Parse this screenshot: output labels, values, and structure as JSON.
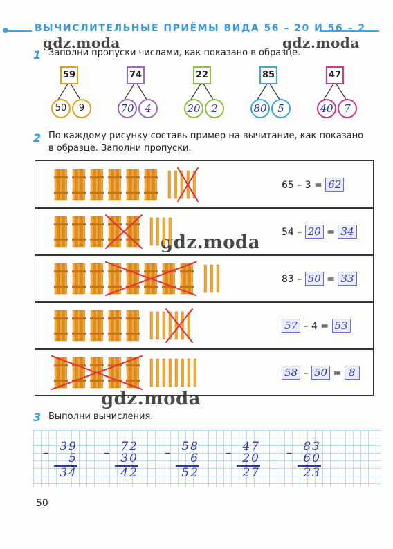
{
  "title": "ВЫЧИСЛИТЕЛЬНЫЕ ПРИЁМЫ ВИДА 56 – 20 И 56 – 2",
  "watermark": "gdz.moda",
  "task1": {
    "number": "1",
    "text": "Заполни пропуски числами, как показано в образце.",
    "items": [
      {
        "top": "59",
        "left": "50",
        "right": "9",
        "color": "#e0a019",
        "handwritten": false
      },
      {
        "top": "74",
        "left": "70",
        "right": "4",
        "color": "#9b6bc4",
        "handwritten": true
      },
      {
        "top": "22",
        "left": "20",
        "right": "2",
        "color": "#8cbf3a",
        "handwritten": true
      },
      {
        "top": "85",
        "left": "80",
        "right": "5",
        "color": "#3aa6d8",
        "handwritten": true
      },
      {
        "top": "47",
        "left": "40",
        "right": "7",
        "color": "#d63384",
        "handwritten": true
      }
    ]
  },
  "task2": {
    "number": "2",
    "text_line1": "По каждому рисунку составь пример на вычитание, как показано",
    "text_line2": "в образце. Заполни пропуски.",
    "rows": [
      {
        "a": "65",
        "b": "3",
        "r": "62",
        "bundles": 6,
        "crossed_bundles": 0,
        "sticks": 5,
        "crossed_sticks": 3
      },
      {
        "a": "54",
        "b": "20",
        "r": "34",
        "bundles": 5,
        "crossed_bundles": 2,
        "sticks": 4,
        "crossed_sticks": 0
      },
      {
        "a": "83",
        "b": "50",
        "r": "33",
        "bundles": 8,
        "crossed_bundles": 5,
        "sticks": 3,
        "crossed_sticks": 0
      },
      {
        "a": "57",
        "b": "4",
        "r": "53",
        "bundles": 5,
        "crossed_bundles": 0,
        "sticks": 7,
        "crossed_sticks": 4
      },
      {
        "a": "58",
        "b": "50",
        "r": "8",
        "bundles": 5,
        "crossed_bundles": 5,
        "sticks": 8,
        "crossed_sticks": 0
      }
    ],
    "minus": "–",
    "equals": "="
  },
  "task3": {
    "number": "3",
    "text": "Выполни вычисления.",
    "calcs": [
      {
        "a": "39",
        "b": "5",
        "r": "34"
      },
      {
        "a": "72",
        "b": "30",
        "r": "42"
      },
      {
        "a": "58",
        "b": "6",
        "r": "52"
      },
      {
        "a": "47",
        "b": "20",
        "r": "27"
      },
      {
        "a": "83",
        "b": "60",
        "r": "23"
      }
    ]
  },
  "page_number": "50"
}
